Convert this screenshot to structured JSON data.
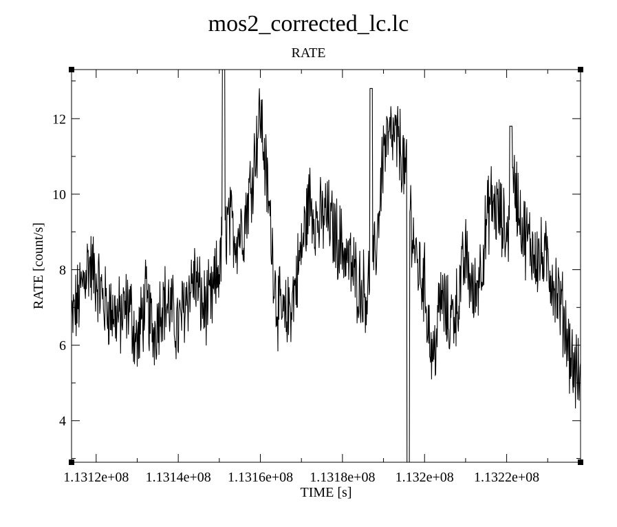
{
  "chart_data": {
    "type": "line",
    "title": "mos2_corrected_lc.lc",
    "subtitle": "RATE",
    "xlabel": "TIME [s]",
    "ylabel": "RATE [count/s]",
    "xlim": [
      113114000,
      113238000
    ],
    "ylim": [
      2.9,
      13.3
    ],
    "x_ticks": [
      113120000,
      113140000,
      113160000,
      113180000,
      113200000,
      113220000
    ],
    "x_tick_labels": [
      "1.1312e+08",
      "1.1314e+08",
      "1.1316e+08",
      "1.1318e+08",
      "1.132e+08",
      "1.1322e+08"
    ],
    "y_ticks": [
      4,
      6,
      8,
      10,
      12
    ],
    "y_tick_labels": [
      "4",
      "6",
      "8",
      "10",
      "12"
    ],
    "grid": false,
    "legend": "none",
    "line_color": "#000000",
    "series": [
      {
        "x": [
          113114000,
          113116000,
          113118000,
          113120000,
          113122000,
          113124000,
          113126000,
          113128000,
          113130000,
          113132000,
          113134000,
          113136000,
          113138000,
          113140000,
          113142000,
          113144000,
          113146000,
          113148000,
          113150000,
          113152000,
          113154000,
          113156000,
          113158000,
          113160000,
          113162000,
          113164000,
          113166000,
          113168000,
          113170000,
          113172000,
          113174000,
          113176000,
          113178000,
          113180000,
          113182000,
          113184000,
          113186000,
          113188000,
          113190000,
          113192000,
          113194000,
          113196000,
          113198000,
          113200000,
          113202000,
          113204000,
          113206000,
          113208000,
          113210000,
          113212000,
          113214000,
          113216000,
          113218000,
          113220000,
          113222000,
          113224000,
          113226000,
          113228000,
          113230000,
          113232000,
          113234000,
          113236000,
          113238000
        ],
        "y": [
          6.6,
          7.3,
          8.2,
          7.8,
          7.1,
          6.9,
          6.7,
          7.1,
          6.0,
          7.2,
          6.3,
          7.2,
          7.0,
          6.4,
          7.3,
          7.8,
          7.0,
          7.1,
          8.1,
          9.3,
          8.9,
          9.2,
          10.5,
          12.2,
          9.8,
          7.1,
          6.6,
          7.3,
          8.5,
          9.9,
          9.2,
          9.5,
          9.0,
          8.6,
          8.1,
          7.6,
          7.4,
          8.3,
          11.2,
          11.5,
          11.3,
          10.1,
          8.2,
          7.6,
          5.5,
          7.3,
          6.6,
          7.1,
          8.4,
          7.2,
          8.3,
          9.8,
          9.5,
          8.9,
          10.3,
          9.0,
          8.6,
          8.3,
          8.2,
          7.5,
          6.7,
          5.5,
          5.0
        ],
        "highlights": [
          {
            "x": 113151000,
            "y": 13.3
          },
          {
            "x": 113187000,
            "y": 12.8
          },
          {
            "x": 113196000,
            "y": 2.9
          },
          {
            "x": 113221000,
            "y": 11.8
          }
        ]
      }
    ]
  }
}
